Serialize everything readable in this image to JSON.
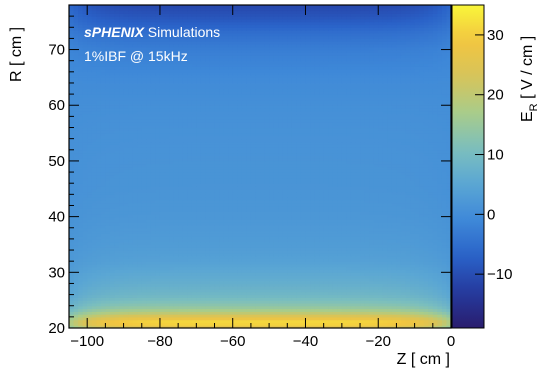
{
  "chart_data": {
    "type": "heatmap",
    "annotations": [
      {
        "bold_italic": "sPHENIX",
        "rest": " Simulations"
      },
      {
        "text": "1%IBF @ 15kHz"
      }
    ],
    "xlabel": "Z   [ cm ]",
    "ylabel": "R   [ cm ]",
    "zlabel": "E",
    "zlabel_subscript": "R",
    "zlabel_units": "  [ V / cm ]",
    "xlim": [
      -105,
      0
    ],
    "ylim": [
      20,
      78
    ],
    "zlim": [
      -19,
      35
    ],
    "x_ticks": [
      {
        "value": -100,
        "label": "−100"
      },
      {
        "value": -80,
        "label": "−80"
      },
      {
        "value": -60,
        "label": "−60"
      },
      {
        "value": -40,
        "label": "−40"
      },
      {
        "value": -20,
        "label": "−20"
      },
      {
        "value": 0,
        "label": "0"
      }
    ],
    "y_ticks": [
      {
        "value": 20,
        "label": "20"
      },
      {
        "value": 30,
        "label": "30"
      },
      {
        "value": 40,
        "label": "40"
      },
      {
        "value": 50,
        "label": "50"
      },
      {
        "value": 60,
        "label": "60"
      },
      {
        "value": 70,
        "label": "70"
      }
    ],
    "z_ticks": [
      {
        "value": -10,
        "label": "−10"
      },
      {
        "value": 0,
        "label": "0"
      },
      {
        "value": 10,
        "label": "10"
      },
      {
        "value": 20,
        "label": "20"
      },
      {
        "value": 30,
        "label": "30"
      }
    ],
    "colormap": [
      "#2a1d6e",
      "#253a9e",
      "#2a62c8",
      "#3e88d8",
      "#5aa6d4",
      "#7cbfbd",
      "#a9cc8a",
      "#d6c45a",
      "#f2c540",
      "#f9f63a"
    ],
    "profile_R": [
      20,
      21,
      22,
      23,
      24,
      25,
      26,
      28,
      30,
      32,
      35,
      40,
      45,
      50,
      55,
      60,
      65,
      70,
      73,
      76,
      78
    ],
    "profile_E": [
      24,
      33,
      26,
      18,
      13.5,
      11,
      9,
      7,
      5.5,
      4,
      3,
      2,
      1.5,
      1.3,
      1,
      0.5,
      -0.5,
      -2.5,
      -5,
      -9,
      -11
    ]
  }
}
